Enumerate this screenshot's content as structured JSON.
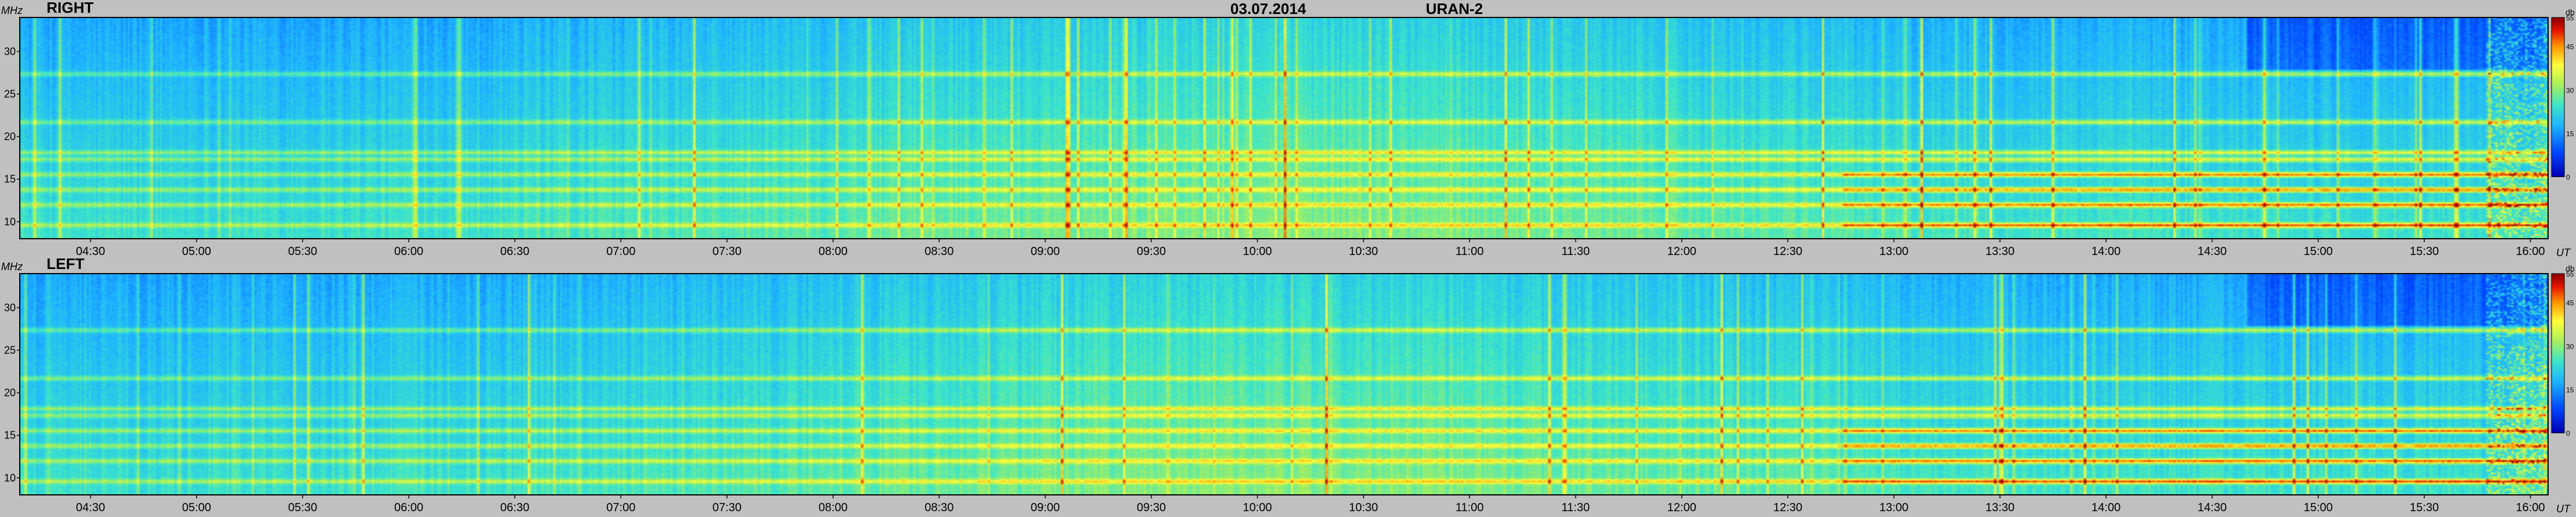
{
  "header": {
    "date": "03.07.2014",
    "instrument": "URAN-2"
  },
  "chart_data": [
    {
      "type": "heatmap",
      "title": "RIGHT",
      "ylabel": "MHz",
      "xlabel": "UT",
      "colorbar_label": "db",
      "ylim": [
        8,
        34
      ],
      "xlim": [
        "04:10",
        "16:05"
      ],
      "x_ticks": [
        "04:30",
        "05:00",
        "05:30",
        "06:00",
        "06:30",
        "07:00",
        "07:30",
        "08:00",
        "08:30",
        "09:00",
        "09:30",
        "10:00",
        "10:30",
        "11:00",
        "11:30",
        "12:00",
        "12:30",
        "13:00",
        "13:30",
        "14:00",
        "14:30",
        "15:00",
        "15:30",
        "16:00"
      ],
      "y_ticks": [
        "10",
        "15",
        "20",
        "25",
        "30"
      ],
      "colorbar_ticks": [
        "0",
        "15",
        "30",
        "45",
        "55"
      ],
      "clim": [
        0,
        55
      ],
      "interference_bands_mhz": [
        9.5,
        11.9,
        13.7,
        15.5,
        17.3,
        18.1,
        21.7,
        27.4
      ],
      "colors": {
        "low": "#0000b4",
        "mid": "#28c8ff",
        "high": "#ffff3c",
        "max": "#8c0000"
      }
    },
    {
      "type": "heatmap",
      "title": "LEFT",
      "ylabel": "MHz",
      "xlabel": "UT",
      "colorbar_label": "db",
      "ylim": [
        8,
        34
      ],
      "xlim": [
        "04:10",
        "16:05"
      ],
      "x_ticks": [
        "04:30",
        "05:00",
        "05:30",
        "06:00",
        "06:30",
        "07:00",
        "07:30",
        "08:00",
        "08:30",
        "09:00",
        "09:30",
        "10:00",
        "10:30",
        "11:00",
        "11:30",
        "12:00",
        "12:30",
        "13:00",
        "13:30",
        "14:00",
        "14:30",
        "15:00",
        "15:30",
        "16:00"
      ],
      "y_ticks": [
        "10",
        "15",
        "20",
        "25",
        "30"
      ],
      "colorbar_ticks": [
        "0",
        "15",
        "30",
        "45",
        "55"
      ],
      "clim": [
        0,
        55
      ],
      "interference_bands_mhz": [
        9.5,
        11.9,
        13.7,
        15.5,
        17.3,
        18.1,
        21.7,
        27.4
      ],
      "colors": {
        "low": "#0000b4",
        "mid": "#28c8ff",
        "high": "#ffff3c",
        "max": "#8c0000"
      }
    }
  ]
}
